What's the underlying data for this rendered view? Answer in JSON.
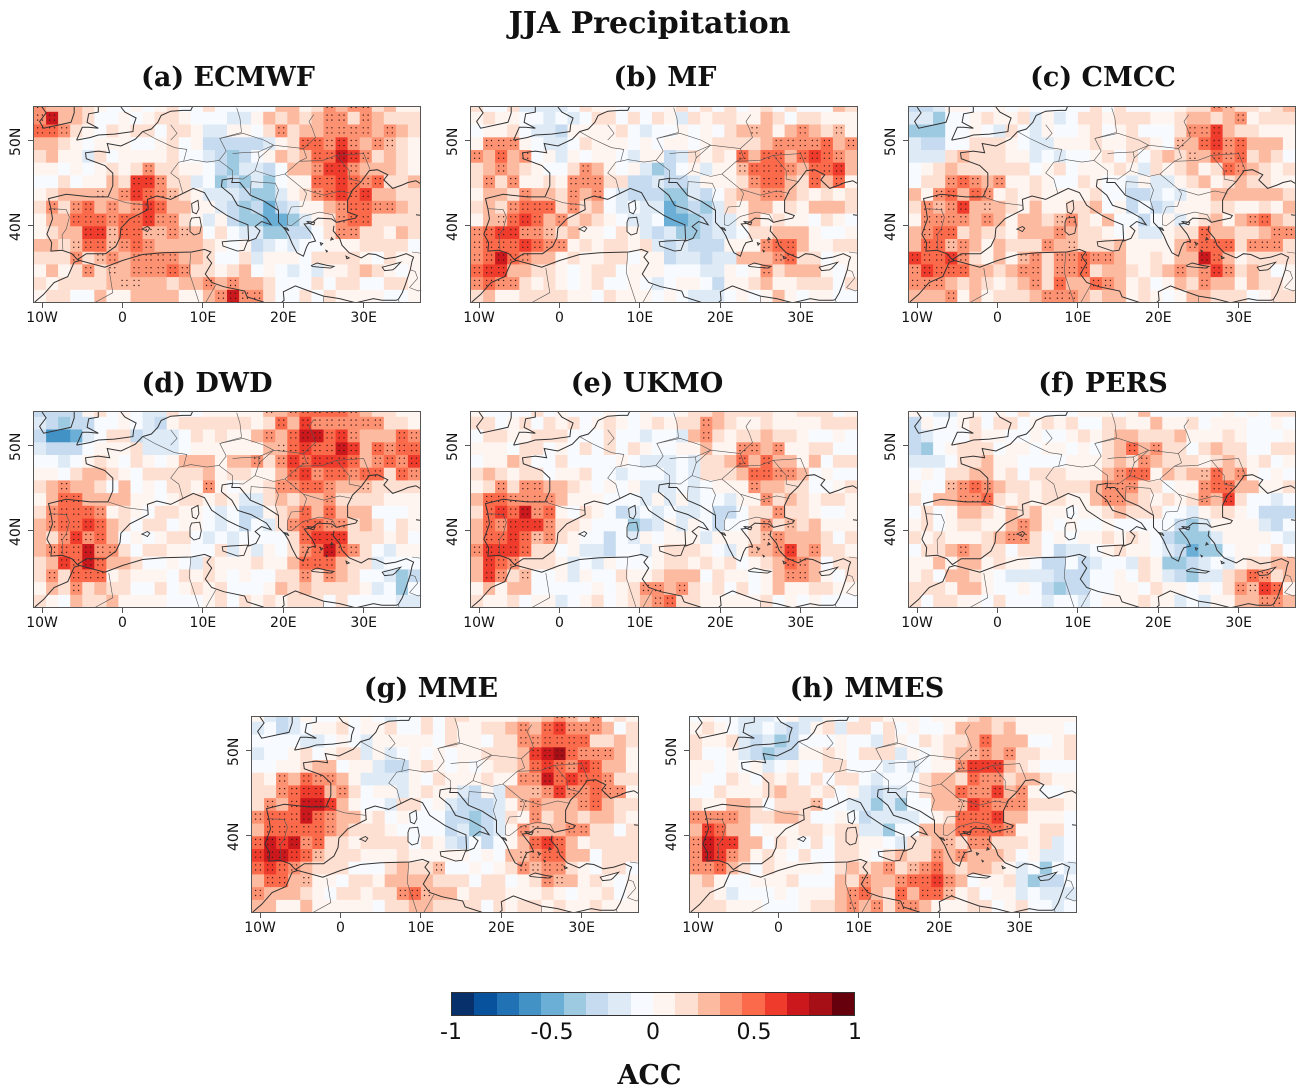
{
  "title": "JJA Precipitation",
  "x_ticks": [
    "10W",
    "0",
    "10E",
    "20E",
    "30E"
  ],
  "x_tick_lons": [
    -10,
    0,
    10,
    20,
    30
  ],
  "y_ticks": [
    "50N",
    "40N"
  ],
  "y_tick_lats": [
    50,
    40
  ],
  "lon_range": [
    -11,
    37
  ],
  "lat_range": [
    31,
    54
  ],
  "panels": [
    {
      "id": "a",
      "letter": "(a)",
      "name": "ECMWF"
    },
    {
      "id": "b",
      "letter": "(b)",
      "name": "MF"
    },
    {
      "id": "c",
      "letter": "(c)",
      "name": "CMCC"
    },
    {
      "id": "d",
      "letter": "(d)",
      "name": "DWD"
    },
    {
      "id": "e",
      "letter": "(e)",
      "name": "UKMO"
    },
    {
      "id": "f",
      "letter": "(f)",
      "name": "PERS"
    },
    {
      "id": "g",
      "letter": "(g)",
      "name": "MME"
    },
    {
      "id": "h",
      "letter": "(h)",
      "name": "MMES"
    }
  ],
  "colorbar": {
    "label": "ACC",
    "tick_labels": [
      "-1",
      "-0.5",
      "0",
      "0.5",
      "1"
    ],
    "tick_values": [
      -1,
      -0.5,
      0,
      0.5,
      1
    ],
    "colors": [
      "#08306b",
      "#08519c",
      "#2171b5",
      "#4292c6",
      "#6baed6",
      "#9ecae1",
      "#c6dbef",
      "#deebf7",
      "#f7fbff",
      "#fff5f0",
      "#fee0d2",
      "#fcbba1",
      "#fc9272",
      "#fb6a4a",
      "#ef3b2c",
      "#cb181d",
      "#a50f15",
      "#67000d"
    ]
  }
}
